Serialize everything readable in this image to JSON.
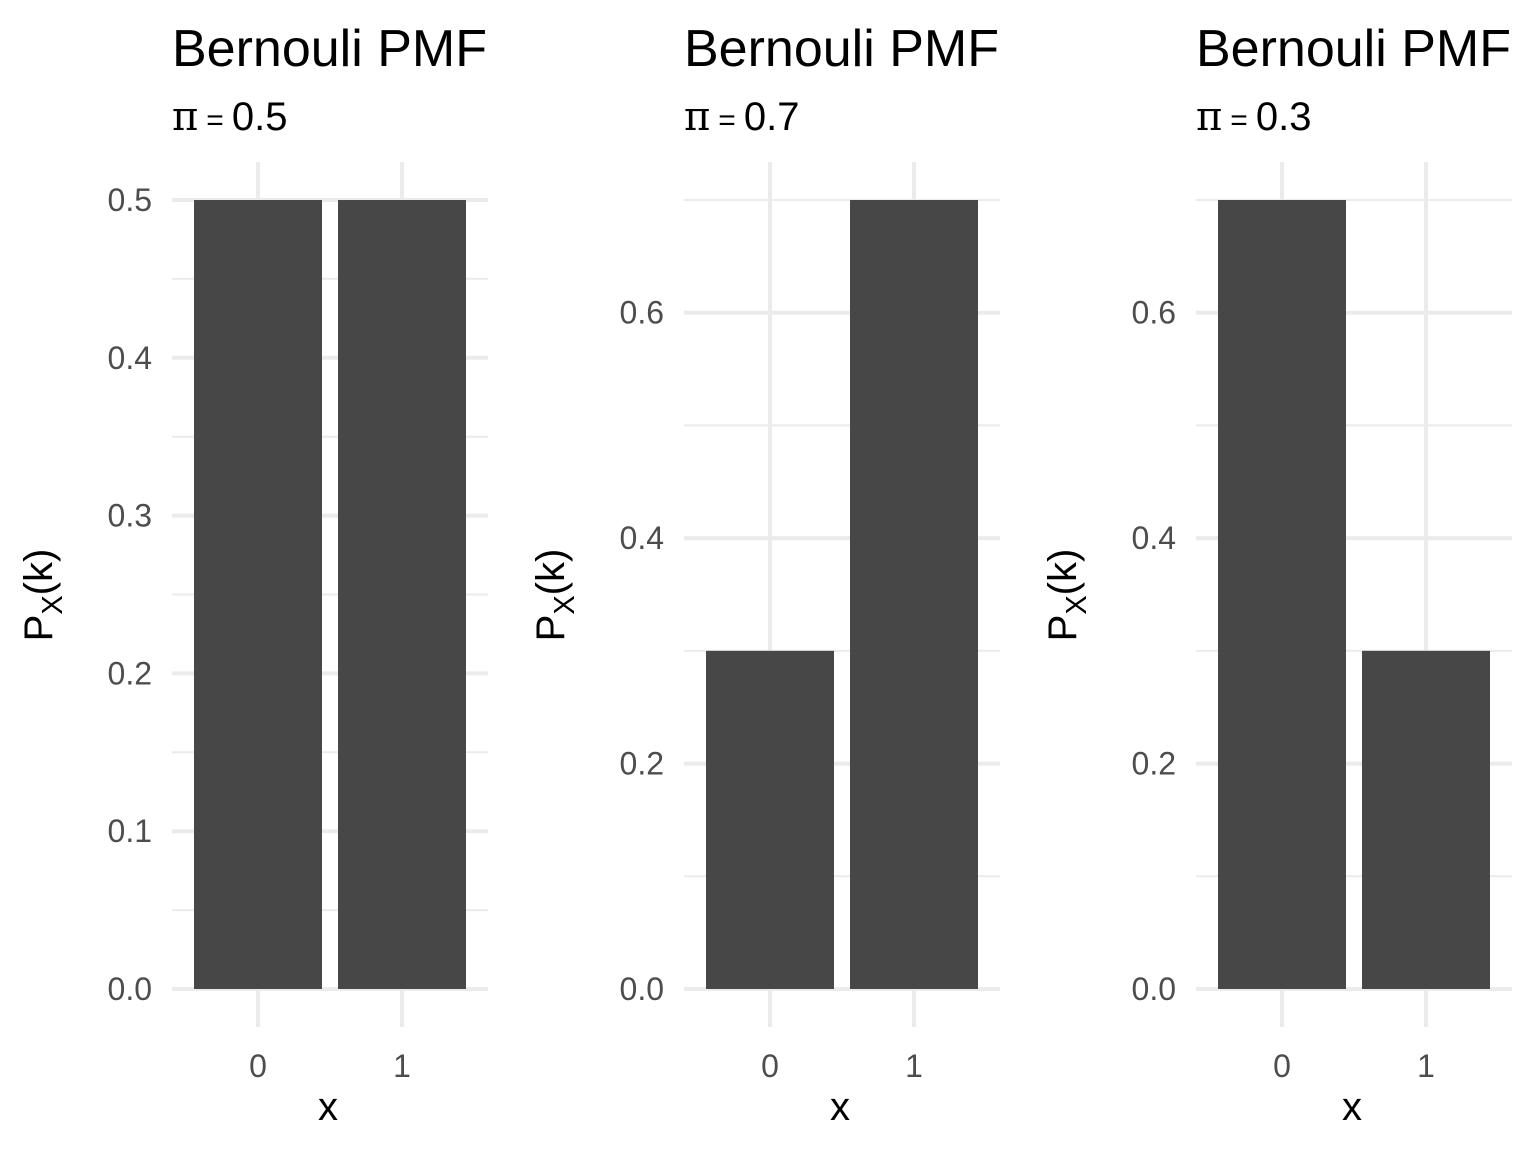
{
  "chart_data": [
    {
      "type": "bar",
      "title": "Bernouli PMF",
      "subtitle": {
        "symbol": "π",
        "equals": "=",
        "value": "0.5"
      },
      "xlabel": "x",
      "ylabel": {
        "main": "P",
        "sub": "X",
        "rest": "(k)"
      },
      "categories": [
        "0",
        "1"
      ],
      "values": [
        0.5,
        0.5
      ],
      "ylim": [
        0,
        0.5
      ],
      "yticks": [
        0.0,
        0.1,
        0.2,
        0.3,
        0.4,
        0.5
      ],
      "ytick_labels": [
        "0.0",
        "0.1",
        "0.2",
        "0.3",
        "0.4",
        "0.5"
      ],
      "grid": true,
      "bar_color": "#474747"
    },
    {
      "type": "bar",
      "title": "Bernouli PMF",
      "subtitle": {
        "symbol": "π",
        "equals": "=",
        "value": "0.7"
      },
      "xlabel": "x",
      "ylabel": {
        "main": "P",
        "sub": "X",
        "rest": "(k)"
      },
      "categories": [
        "0",
        "1"
      ],
      "values": [
        0.3,
        0.7
      ],
      "ylim": [
        0,
        0.7
      ],
      "yticks": [
        0.0,
        0.2,
        0.4,
        0.6
      ],
      "ytick_labels": [
        "0.0",
        "0.2",
        "0.4",
        "0.6"
      ],
      "grid": true,
      "bar_color": "#474747"
    },
    {
      "type": "bar",
      "title": "Bernouli PMF",
      "subtitle": {
        "symbol": "π",
        "equals": "=",
        "value": "0.3"
      },
      "xlabel": "x",
      "ylabel": {
        "main": "P",
        "sub": "X",
        "rest": "(k)"
      },
      "categories": [
        "0",
        "1"
      ],
      "values": [
        0.7,
        0.3
      ],
      "ylim": [
        0,
        0.7
      ],
      "yticks": [
        0.0,
        0.2,
        0.4,
        0.6
      ],
      "ytick_labels": [
        "0.0",
        "0.2",
        "0.4",
        "0.6"
      ],
      "grid": true,
      "bar_color": "#474747"
    }
  ]
}
